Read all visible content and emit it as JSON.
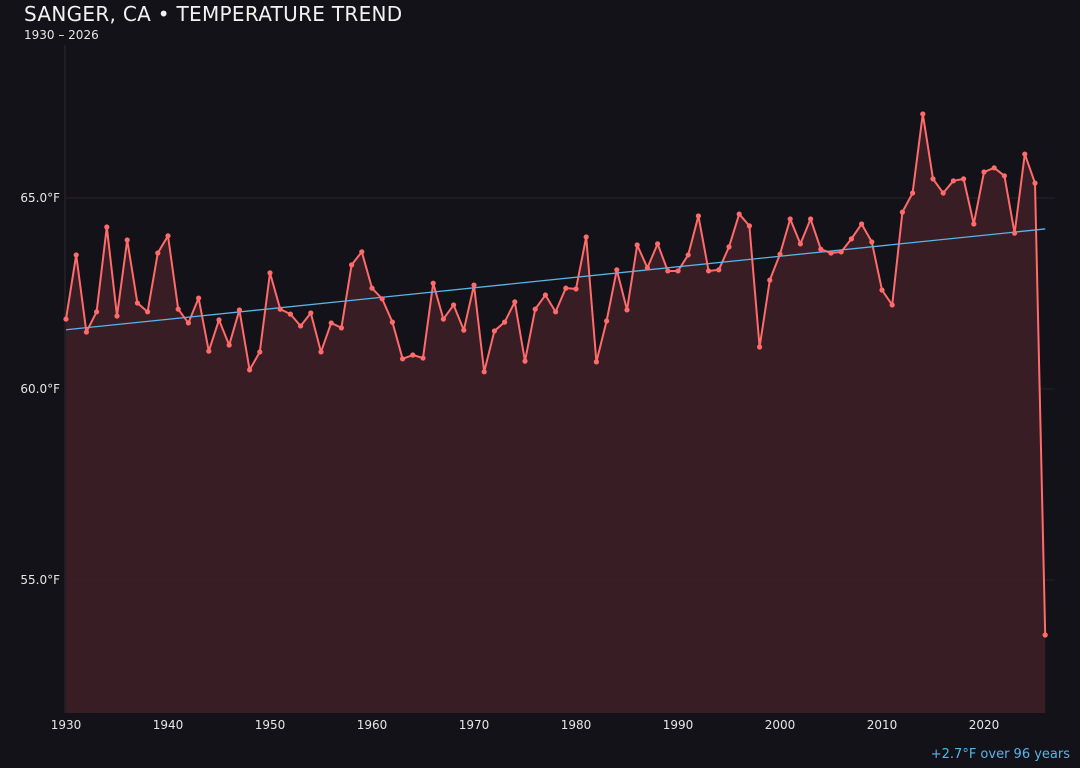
{
  "chart_data": {
    "type": "line",
    "title": "SANGER, CA • TEMPERATURE TREND",
    "subtitle": "1930 – 2026",
    "xlabel": "",
    "ylabel": "",
    "xlim": [
      1930,
      2027
    ],
    "ylim": [
      51.5,
      69.3
    ],
    "x_ticks": [
      1930,
      1940,
      1950,
      1960,
      1970,
      1980,
      1990,
      2000,
      2010,
      2020
    ],
    "y_ticks": [
      55,
      60,
      65
    ],
    "y_tick_labels": [
      "55.0°F",
      "60.0°F",
      "65.0°F"
    ],
    "grid": "horizontal",
    "colors": {
      "series": "#ff6b6b",
      "fill": "#3a1f26",
      "trend": "#5ab4e8",
      "background": "#131218"
    },
    "series": [
      {
        "x": [
          1930,
          1931,
          1932,
          1933,
          1934,
          1935,
          1936,
          1937,
          1938,
          1939,
          1940,
          1941,
          1942,
          1943,
          1944,
          1945,
          1946,
          1947,
          1948,
          1949,
          1950,
          1951,
          1952,
          1953,
          1954,
          1955,
          1956,
          1957,
          1958,
          1959,
          1960,
          1961,
          1962,
          1963,
          1964,
          1965,
          1966,
          1967,
          1968,
          1969,
          1970,
          1971,
          1972,
          1973,
          1974,
          1975,
          1976,
          1977,
          1978,
          1979,
          1980,
          1981,
          1982,
          1983,
          1984,
          1985,
          1986,
          1987,
          1988,
          1989,
          1990,
          1991,
          1992,
          1993,
          1994,
          1995,
          1996,
          1997,
          1998,
          1999,
          2000,
          2001,
          2002,
          2003,
          2004,
          2005,
          2006,
          2007,
          2008,
          2009,
          2010,
          2011,
          2012,
          2013,
          2014,
          2015,
          2016,
          2017,
          2018,
          2019,
          2020,
          2021,
          2022,
          2023,
          2024,
          2025,
          2026
        ],
        "values": [
          61.83,
          63.51,
          61.49,
          62.02,
          64.24,
          61.91,
          63.9,
          62.25,
          62.02,
          63.56,
          64.01,
          62.09,
          61.73,
          62.38,
          60.99,
          61.81,
          61.15,
          62.07,
          60.5,
          60.97,
          63.04,
          62.09,
          61.96,
          61.65,
          61.99,
          60.97,
          61.73,
          61.6,
          63.25,
          63.59,
          62.64,
          62.36,
          61.75,
          60.79,
          60.89,
          60.81,
          62.77,
          61.83,
          62.2,
          61.54,
          62.72,
          60.45,
          61.52,
          61.75,
          62.28,
          60.73,
          62.09,
          62.46,
          62.02,
          62.64,
          62.62,
          63.98,
          60.71,
          61.78,
          63.12,
          62.07,
          63.77,
          63.17,
          63.8,
          63.09,
          63.09,
          63.51,
          64.53,
          63.09,
          63.12,
          63.72,
          64.58,
          64.27,
          61.1,
          62.85,
          63.53,
          64.45,
          63.8,
          64.45,
          63.66,
          63.56,
          63.59,
          63.93,
          64.32,
          63.85,
          62.59,
          62.2,
          64.63,
          65.13,
          67.2,
          65.5,
          65.13,
          65.45,
          65.5,
          64.32,
          65.68,
          65.79,
          65.58,
          64.08,
          66.15,
          65.39,
          53.56
        ]
      }
    ],
    "trend": {
      "x": [
        1930,
        2026
      ],
      "values": [
        61.55,
        64.19
      ]
    },
    "annotation": "+2.7°F over 96 years"
  }
}
